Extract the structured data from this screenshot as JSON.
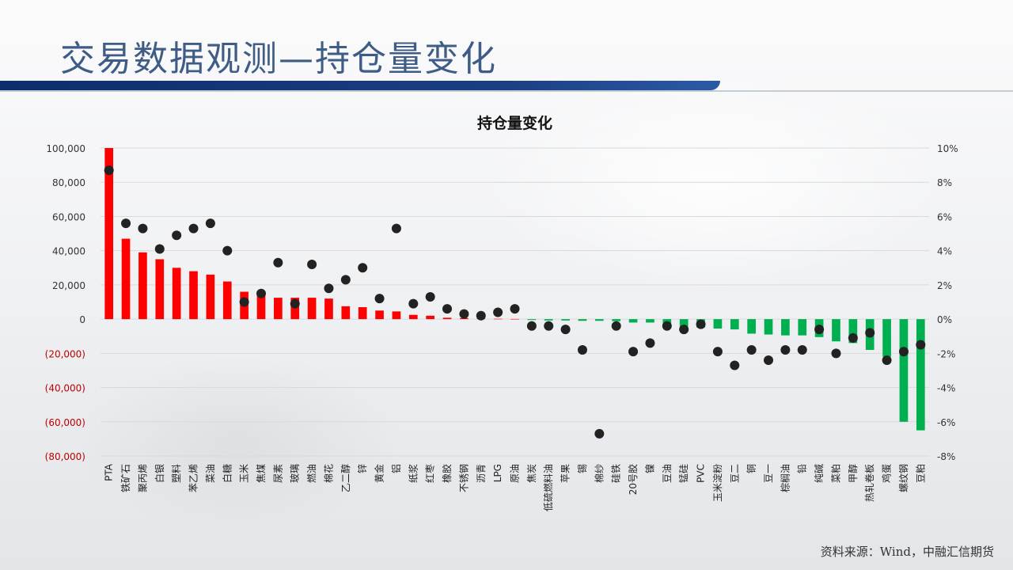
{
  "page": {
    "title": "交易数据观测—持仓量变化",
    "source_note": "资料来源：Wind，中融汇信期货"
  },
  "chart_data": {
    "type": "bar",
    "title": "持仓量变化",
    "categories": [
      "PTA",
      "铁矿石",
      "聚丙烯",
      "白银",
      "塑料",
      "苯乙烯",
      "菜油",
      "白糖",
      "玉米",
      "焦煤",
      "尿素",
      "玻璃",
      "燃油",
      "棉花",
      "乙二醇",
      "锌",
      "黄金",
      "铝",
      "纸浆",
      "红枣",
      "橡胶",
      "不锈钢",
      "沥青",
      "LPG",
      "原油",
      "焦炭",
      "低硫燃料油",
      "苹果",
      "锡",
      "棉纱",
      "硅铁",
      "20号胶",
      "镍",
      "豆油",
      "锰硅",
      "PVC",
      "玉米淀粉",
      "豆二",
      "铜",
      "豆一",
      "棕榈油",
      "铅",
      "纯碱",
      "菜粕",
      "甲醇",
      "热轧卷板",
      "鸡蛋",
      "螺纹钢",
      "豆粕"
    ],
    "series": [
      {
        "type": "bar",
        "axis": "left",
        "values": [
          100000,
          47000,
          39000,
          35000,
          30000,
          28000,
          26000,
          22000,
          16000,
          14000,
          12500,
          12500,
          12500,
          12000,
          7500,
          7000,
          5000,
          4500,
          2500,
          2000,
          800,
          600,
          300,
          200,
          100,
          -500,
          -800,
          -800,
          -1000,
          -1000,
          -1200,
          -2000,
          -2000,
          -2500,
          -4500,
          -5000,
          -5500,
          -6000,
          -8500,
          -9000,
          -9500,
          -9500,
          -10500,
          -13000,
          -14000,
          -18000,
          -22000,
          -60000,
          -65000
        ]
      },
      {
        "type": "scatter",
        "axis": "right",
        "values": [
          8.7,
          5.6,
          5.3,
          4.1,
          4.9,
          5.3,
          5.6,
          4.0,
          1.0,
          1.5,
          3.3,
          0.9,
          3.2,
          1.8,
          2.3,
          3.0,
          1.2,
          5.3,
          0.9,
          1.3,
          0.6,
          0.3,
          0.2,
          0.4,
          0.6,
          -0.4,
          -0.4,
          -0.6,
          -1.8,
          -6.7,
          -0.4,
          -1.9,
          -1.4,
          -0.4,
          -0.6,
          -0.3,
          -1.9,
          -2.7,
          -1.8,
          -2.4,
          -1.8,
          -1.8,
          -0.6,
          -2.0,
          -1.1,
          -0.8,
          -2.4,
          -1.9,
          -1.5
        ]
      }
    ],
    "left_axis": {
      "range": [
        -80000,
        100000
      ],
      "ticks": [
        100000,
        80000,
        60000,
        40000,
        20000,
        0,
        -20000,
        -40000,
        -60000,
        -80000
      ],
      "tick_labels": [
        "100,000",
        "80,000",
        "60,000",
        "40,000",
        "20,000",
        "0",
        "(20,000)",
        "(40,000)",
        "(60,000)",
        "(80,000)"
      ]
    },
    "right_axis": {
      "range": [
        -8,
        10
      ],
      "ticks": [
        10,
        8,
        6,
        4,
        2,
        0,
        -2,
        -4,
        -6,
        -8
      ],
      "tick_labels": [
        "10%",
        "8%",
        "6%",
        "4%",
        "2%",
        "0%",
        "-2%",
        "-4%",
        "-6%",
        "-8%"
      ]
    },
    "grid": true,
    "legend": "none",
    "colors": {
      "positive_bar": "#ff0000",
      "negative_bar": "#00b050",
      "marker": "#222222",
      "negative_tick_label": "#c00000",
      "grid": "#d9d9d9"
    }
  }
}
